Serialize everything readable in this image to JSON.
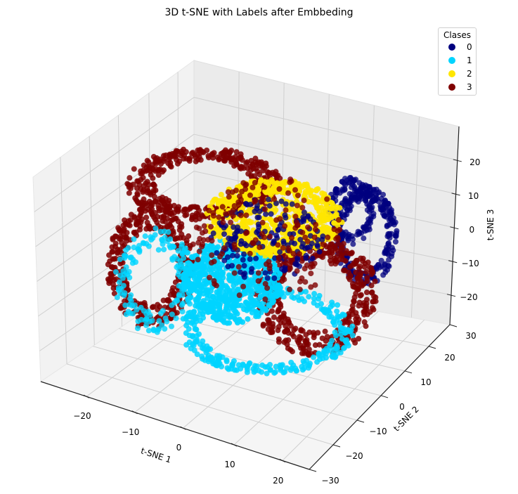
{
  "chart_data": {
    "type": "scatter",
    "subtype": "scatter3d",
    "title": "3D t-SNE with Labels after Embbeding",
    "xlabel": "t-SNE 1",
    "ylabel": "t-SNE 2",
    "zlabel": "t-SNE 3",
    "xticks": [
      "−20",
      "−10",
      "0",
      "10",
      "20"
    ],
    "yticks": [
      "−30",
      "−20",
      "−10",
      "0",
      "10",
      "20",
      "30"
    ],
    "zticks": [
      "20",
      "10",
      "0",
      "−10",
      "−20"
    ],
    "xlim": [
      -27,
      27
    ],
    "ylim": [
      -30,
      30
    ],
    "zlim": [
      -28,
      28
    ],
    "grid": true,
    "legend": {
      "title": "Clases",
      "position": "upper right",
      "entries": [
        {
          "label": "0",
          "color": "#00007f"
        },
        {
          "label": "1",
          "color": "#00d4ff"
        },
        {
          "label": "2",
          "color": "#ffe600"
        },
        {
          "label": "3",
          "color": "#7f0000"
        }
      ]
    },
    "series": [
      {
        "name": "0",
        "color": "#00007f",
        "description": "ring clusters on right side (x≈15..25, z≈-15..10) plus scattered points inside center"
      },
      {
        "name": "1",
        "color": "#00d4ff",
        "description": "dense disk at center-left-lower, ring along bottom"
      },
      {
        "name": "2",
        "color": "#ffe600",
        "description": "dense band at center-top"
      },
      {
        "name": "3",
        "color": "#7f0000",
        "description": "outer rings top, left and right-lower"
      }
    ]
  }
}
